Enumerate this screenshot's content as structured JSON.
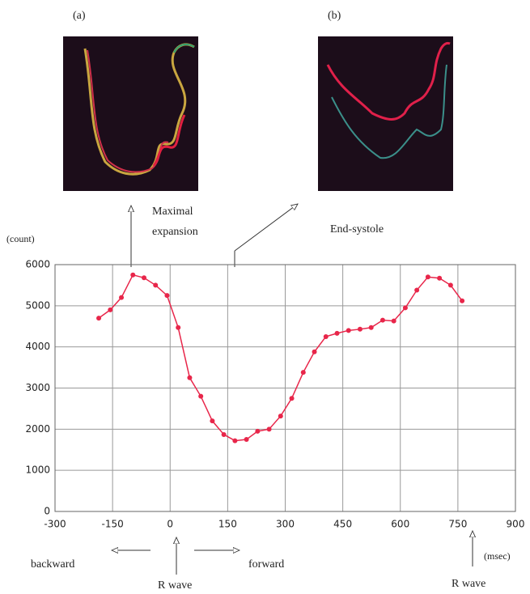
{
  "chart_data": {
    "type": "line",
    "panel_labels": [
      "(a)",
      "(b)"
    ],
    "annotations": {
      "maximal": [
        "Maximal",
        "expansion"
      ],
      "end_systole": "End-systole",
      "backward": "backward",
      "forward": "forward",
      "r_wave_left": "R wave",
      "r_wave_right": "R wave"
    },
    "ylabel": "(count)",
    "xlabel": "(msec)",
    "x": [
      -186,
      -156,
      -127,
      -97,
      -68,
      -38,
      -8,
      21,
      51,
      80,
      110,
      140,
      169,
      199,
      228,
      258,
      288,
      317,
      347,
      376,
      406,
      435,
      465,
      495,
      524,
      554,
      583,
      613,
      643,
      672,
      702,
      731,
      761
    ],
    "series": [
      {
        "color": "#e8264a",
        "values": [
          4700,
          4900,
          5200,
          5750,
          5680,
          5500,
          5250,
          4470,
          3250,
          2800,
          2200,
          1870,
          1720,
          1750,
          1950,
          2000,
          2320,
          2750,
          3380,
          3880,
          4250,
          4330,
          4400,
          4430,
          4470,
          4650,
          4630,
          4950,
          5380,
          5700,
          5670,
          5500,
          5120
        ]
      }
    ],
    "xlim": [
      -300,
      900
    ],
    "xticks": [
      -300,
      -150,
      0,
      150,
      300,
      450,
      600,
      750,
      900
    ],
    "ylim": [
      0,
      6000
    ],
    "yticks": [
      0,
      1000,
      2000,
      3000,
      4000,
      5000,
      6000
    ],
    "grid": true
  }
}
